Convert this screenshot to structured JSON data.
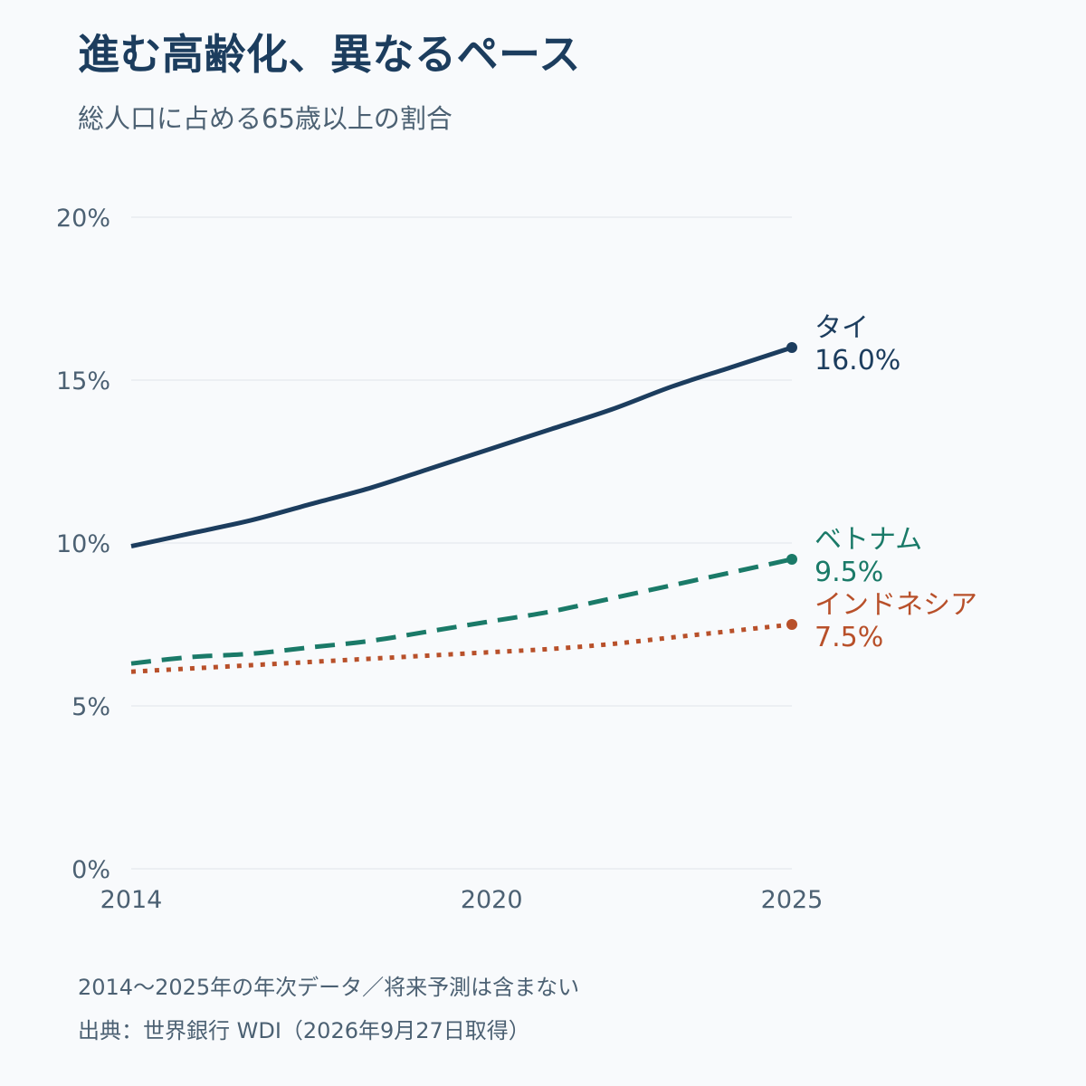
{
  "header": {
    "title": "進む高齢化、異なるペース",
    "subtitle": "総人口に占める65歳以上の割合"
  },
  "chart_data": {
    "type": "line",
    "x": [
      2014,
      2015,
      2016,
      2017,
      2018,
      2019,
      2020,
      2021,
      2022,
      2023,
      2024,
      2025
    ],
    "series": [
      {
        "name": "タイ",
        "color": "#1c3d5e",
        "style": "solid",
        "values": [
          9.9,
          10.3,
          10.7,
          11.2,
          11.7,
          12.3,
          12.9,
          13.5,
          14.1,
          14.8,
          15.4,
          16.0
        ],
        "end_label": "16.0%"
      },
      {
        "name": "ベトナム",
        "color": "#1a7a68",
        "style": "dashed",
        "values": [
          6.3,
          6.5,
          6.6,
          6.8,
          7.0,
          7.3,
          7.6,
          7.9,
          8.3,
          8.7,
          9.1,
          9.5
        ],
        "end_label": "9.5%"
      },
      {
        "name": "インドネシア",
        "color": "#b8502a",
        "style": "dotted",
        "values": [
          6.05,
          6.15,
          6.25,
          6.35,
          6.45,
          6.55,
          6.65,
          6.75,
          6.9,
          7.1,
          7.3,
          7.5
        ],
        "end_label": "7.5%"
      }
    ],
    "y_ticks": [
      "0%",
      "5%",
      "10%",
      "15%",
      "20%"
    ],
    "x_ticks": [
      "2014",
      "2020",
      "2025"
    ],
    "ylim": [
      0,
      20
    ],
    "xlim": [
      2014,
      2025
    ],
    "grid": true,
    "legend": "direct labels at line ends"
  },
  "footer": {
    "note": "2014〜2025年の年次データ／将来予測は含まない",
    "source": "出典：世界銀行 WDI（2026年9月27日取得）"
  }
}
